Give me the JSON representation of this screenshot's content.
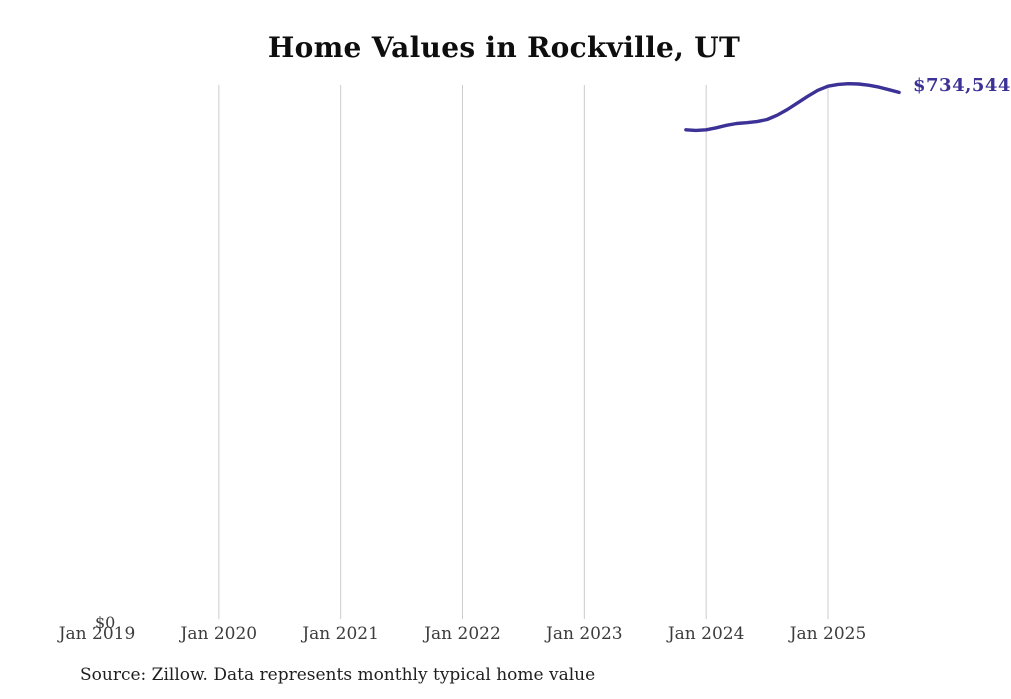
{
  "title": "Home Values in Rockville, UT",
  "y_zero_label": "$0",
  "end_value_label": "$734,544",
  "source_note": "Source: Zillow. Data represents monthly typical home value",
  "colors": {
    "line": "#3b3196",
    "grid": "#cccccc",
    "axis_text": "#3c3c3c",
    "title_text": "#0e0e0e",
    "note_text": "#1e1e1e",
    "background": "#ffffff"
  },
  "chart_data": {
    "type": "line",
    "title": "Home Values in Rockville, UT",
    "xlabel": "",
    "ylabel": "",
    "ylim": [
      0,
      745000
    ],
    "grid": "vertical-only",
    "legend": "none",
    "x_ticks": [
      {
        "label": "Jan 2019",
        "t": 0,
        "grid": false
      },
      {
        "label": "Jan 2020",
        "t": 12,
        "grid": true
      },
      {
        "label": "Jan 2021",
        "t": 24,
        "grid": true
      },
      {
        "label": "Jan 2022",
        "t": 36,
        "grid": true
      },
      {
        "label": "Jan 2023",
        "t": 48,
        "grid": true
      },
      {
        "label": "Jan 2024",
        "t": 60,
        "grid": true
      },
      {
        "label": "Jan 2025",
        "t": 72,
        "grid": true
      }
    ],
    "series": [
      {
        "name": "Monthly typical home value",
        "end_label": "$734,544",
        "points": [
          {
            "month": "Nov 2023",
            "t": 58,
            "value": 682000
          },
          {
            "month": "Dec 2023",
            "t": 59,
            "value": 681200
          },
          {
            "month": "Jan 2024",
            "t": 60,
            "value": 682000
          },
          {
            "month": "Feb 2024",
            "t": 61,
            "value": 684800
          },
          {
            "month": "Mar 2024",
            "t": 62,
            "value": 688300
          },
          {
            "month": "Apr 2024",
            "t": 63,
            "value": 690800
          },
          {
            "month": "May 2024",
            "t": 64,
            "value": 692000
          },
          {
            "month": "Jun 2024",
            "t": 65,
            "value": 693500
          },
          {
            "month": "Jul 2024",
            "t": 66,
            "value": 696500
          },
          {
            "month": "Aug 2024",
            "t": 67,
            "value": 702500
          },
          {
            "month": "Sep 2024",
            "t": 68,
            "value": 710500
          },
          {
            "month": "Oct 2024",
            "t": 69,
            "value": 719800
          },
          {
            "month": "Nov 2024",
            "t": 70,
            "value": 729000
          },
          {
            "month": "Dec 2024",
            "t": 71,
            "value": 737500
          },
          {
            "month": "Jan 2025",
            "t": 72,
            "value": 743200
          },
          {
            "month": "Feb 2025",
            "t": 73,
            "value": 745800
          },
          {
            "month": "Mar 2025",
            "t": 74,
            "value": 746800
          },
          {
            "month": "Apr 2025",
            "t": 75,
            "value": 746300
          },
          {
            "month": "May 2025",
            "t": 76,
            "value": 744600
          },
          {
            "month": "Jun 2025",
            "t": 77,
            "value": 742000
          },
          {
            "month": "Jul 2025",
            "t": 78,
            "value": 738400
          },
          {
            "month": "Aug 2025",
            "t": 79,
            "value": 734544
          }
        ]
      }
    ]
  }
}
